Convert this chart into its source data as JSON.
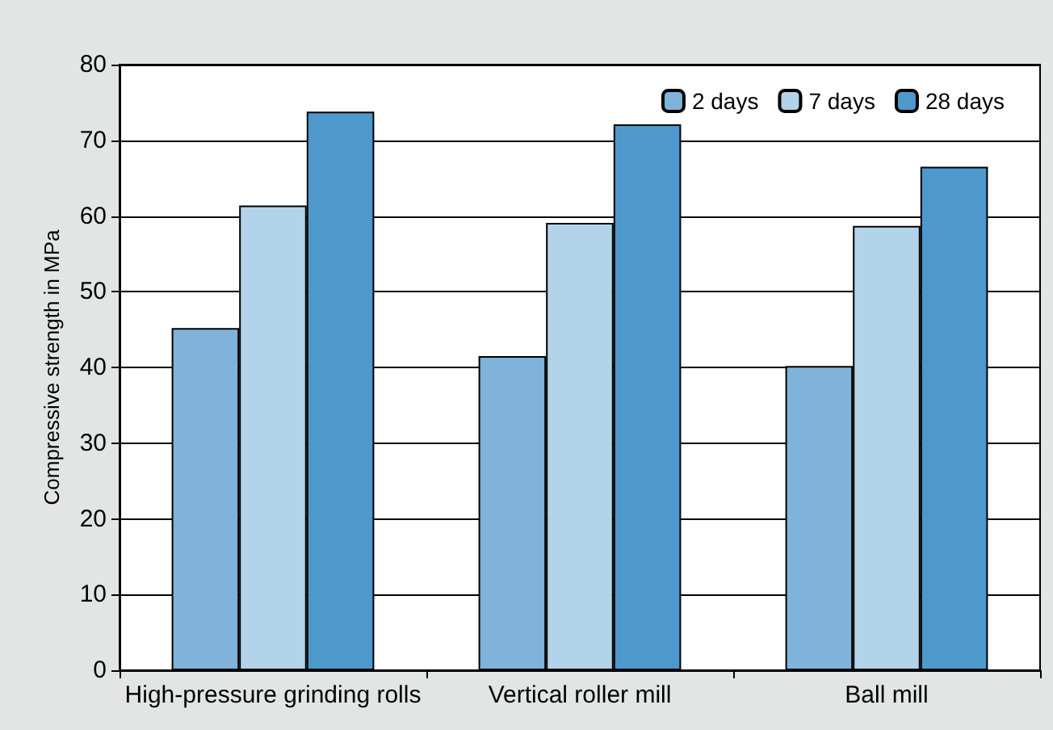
{
  "chart_data": {
    "type": "bar",
    "ylabel": "Compressive strength in MPa",
    "categories": [
      "High-pressure grinding rolls",
      "Vertical roller mill",
      "Ball mill"
    ],
    "series": [
      {
        "name": "2 days",
        "color": "#7fb3d9",
        "values": [
          45.2,
          41.5,
          40.2
        ]
      },
      {
        "name": "7 days",
        "color": "#b3d3ea",
        "values": [
          61.4,
          59.1,
          58.7
        ]
      },
      {
        "name": "28 days",
        "color": "#4d99cc",
        "values": [
          73.8,
          72.1,
          66.5
        ]
      }
    ],
    "ylim": [
      0,
      80
    ],
    "yticks": [
      0,
      10,
      20,
      30,
      40,
      50,
      60,
      70,
      80
    ],
    "grid": "y",
    "legend": "top right"
  }
}
